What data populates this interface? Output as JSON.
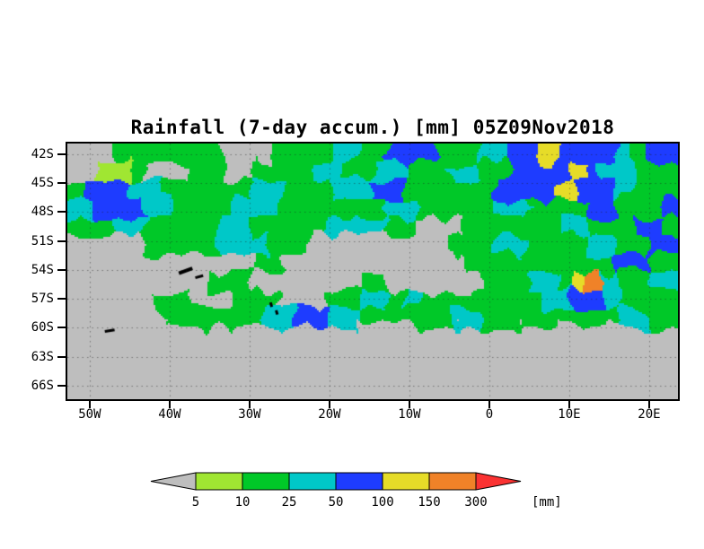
{
  "chart_data": {
    "type": "heatmap",
    "title": "Rainfall (7-day accum.) [mm] 05Z09Nov2018",
    "xlabel": "",
    "ylabel": "",
    "lon_range": [
      -52.8,
      23.6
    ],
    "lat_range": [
      -67.4,
      -40.9
    ],
    "x_ticks": [
      {
        "lon": -50,
        "label": "50W"
      },
      {
        "lon": -40,
        "label": "40W"
      },
      {
        "lon": -30,
        "label": "30W"
      },
      {
        "lon": -20,
        "label": "20W"
      },
      {
        "lon": -10,
        "label": "10W"
      },
      {
        "lon": 0,
        "label": "0"
      },
      {
        "lon": 10,
        "label": "10E"
      },
      {
        "lon": 20,
        "label": "20E"
      }
    ],
    "y_ticks": [
      {
        "lat": -42,
        "label": "42S"
      },
      {
        "lat": -45,
        "label": "45S"
      },
      {
        "lat": -48,
        "label": "48S"
      },
      {
        "lat": -51,
        "label": "51S"
      },
      {
        "lat": -54,
        "label": "54S"
      },
      {
        "lat": -57,
        "label": "57S"
      },
      {
        "lat": -60,
        "label": "60S"
      },
      {
        "lat": -63,
        "label": "63S"
      },
      {
        "lat": -66,
        "label": "66S"
      }
    ],
    "legend": {
      "tick_labels": [
        "5",
        "10",
        "25",
        "50",
        "100",
        "150",
        "300"
      ],
      "unit_label": "[mm]",
      "bin_labels": [
        "<5",
        "5-10",
        "10-25",
        "25-50",
        "50-100",
        "100-150",
        "150-300",
        ">300"
      ],
      "position": "bottom"
    },
    "palette": [
      "#bebebe",
      "#a0e632",
      "#00c828",
      "#00c8c8",
      "#1e3cff",
      "#e6dc28",
      "#f08228",
      "#fa3232"
    ],
    "grid_encoding": "each digit 0-7 indexes palette/bin_labels; rows top(~41S) to bottom(~67.5S), cols left(~52.8W) to right(~23.6E)",
    "grid_rows": [
      "0002222222000222233224442223344544443244",
      "0011200022002222332233222332244445433222",
      "2444332222223322233344222222444454443222",
      "3344433222233322222223322222332222442224",
      "2223322222332222233332200022222233222442",
      "0000022222333222000000000222332222332244",
      "0000000000002200000000000022222222224422",
      "0000000002220000000220000002223325632233",
      "0000002200022200022332322222222334432222",
      "0000002222222334433222222332222222223322",
      "0000000000000000000000000000000000000000",
      "0000000000000000000000000000000000000000",
      "0000000000000000000000000000000000000000",
      "0000000000000000000000000000000000000000"
    ],
    "islands": [
      {
        "lon": -38.0,
        "lat": -54.1,
        "w": 16,
        "h": 4,
        "rot": -20
      },
      {
        "lon": -36.3,
        "lat": -54.7,
        "w": 9,
        "h": 3,
        "rot": -15
      },
      {
        "lon": -27.3,
        "lat": -57.6,
        "w": 5,
        "h": 3,
        "rot": 75
      },
      {
        "lon": -26.6,
        "lat": -58.4,
        "w": 5,
        "h": 3,
        "rot": 75
      },
      {
        "lon": -47.5,
        "lat": -60.3,
        "w": 11,
        "h": 3,
        "rot": -10
      }
    ],
    "gridlines": true
  }
}
